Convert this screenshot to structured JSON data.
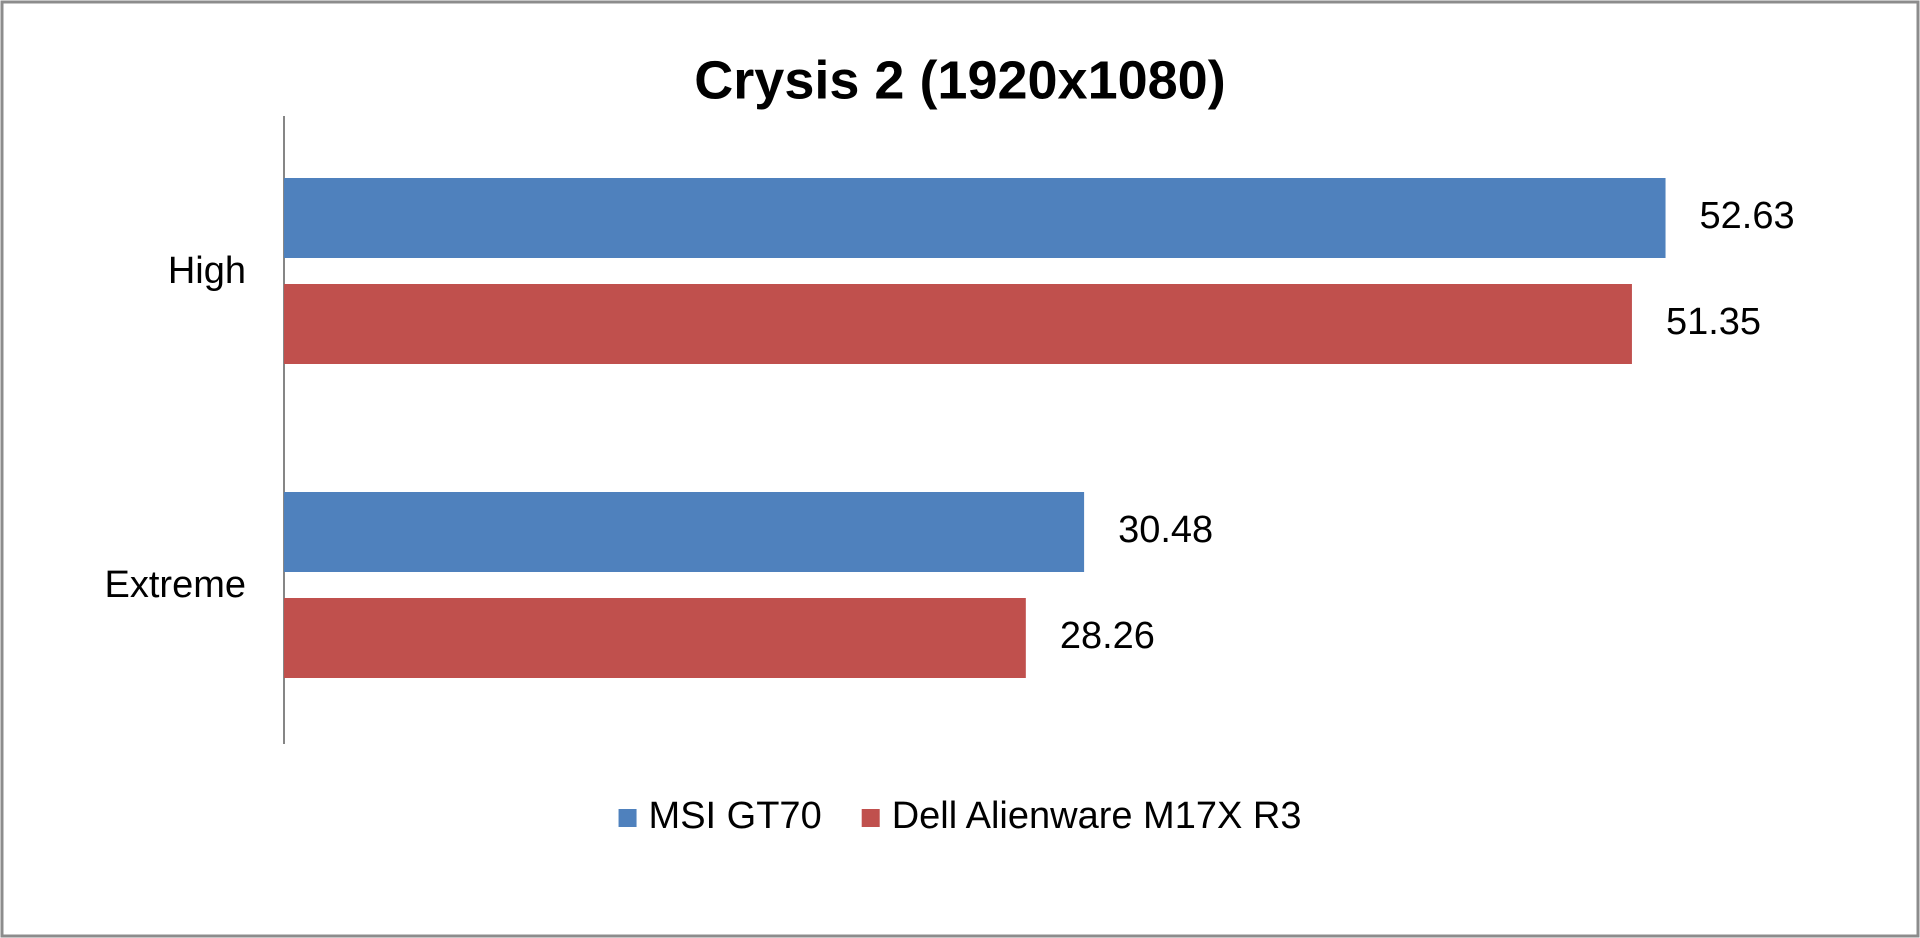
{
  "chart_data": {
    "type": "hbar",
    "title": "Crysis 2 (1920x1080)",
    "categories": [
      "High",
      "Extreme"
    ],
    "series": [
      {
        "name": "MSI GT70",
        "color": "#4f81bd",
        "values": [
          52.63,
          30.48
        ]
      },
      {
        "name": "Dell Alienware M17X R3",
        "color": "#c0504d",
        "values": [
          51.35,
          28.26
        ]
      }
    ],
    "xlim": [
      0,
      60
    ],
    "legend": "bottom"
  }
}
